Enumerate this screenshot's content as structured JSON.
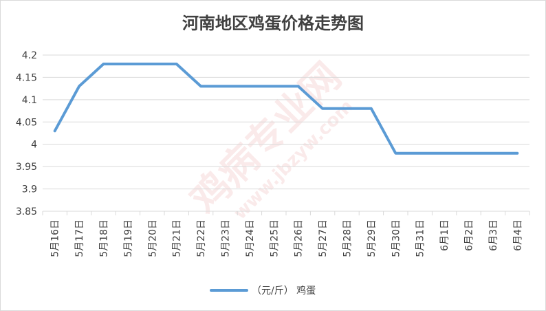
{
  "chart_data": {
    "type": "line",
    "title": "河南地区鸡蛋价格走势图",
    "xlabel": "",
    "ylabel": "",
    "categories": [
      "5月16日",
      "5月17日",
      "5月18日",
      "5月19日",
      "5月20日",
      "5月21日",
      "5月22日",
      "5月23日",
      "5月24日",
      "5月25日",
      "5月26日",
      "5月27日",
      "5月28日",
      "5月29日",
      "5月30日",
      "5月31日",
      "6月1日",
      "6月2日",
      "6月3日",
      "6月4日"
    ],
    "series": [
      {
        "name": "（元/斤） 鸡蛋",
        "color": "#5b9bd5",
        "values": [
          4.03,
          4.13,
          4.18,
          4.18,
          4.18,
          4.18,
          4.13,
          4.13,
          4.13,
          4.13,
          4.13,
          4.08,
          4.08,
          4.08,
          3.98,
          3.98,
          3.98,
          3.98,
          3.98,
          3.98
        ]
      }
    ],
    "ylim": [
      3.85,
      4.2
    ],
    "yticks": [
      "4.2",
      "4.15",
      "4.1",
      "4.05",
      "4",
      "3.95",
      "3.9",
      "3.85"
    ],
    "grid": true,
    "legend": "bottom"
  }
}
